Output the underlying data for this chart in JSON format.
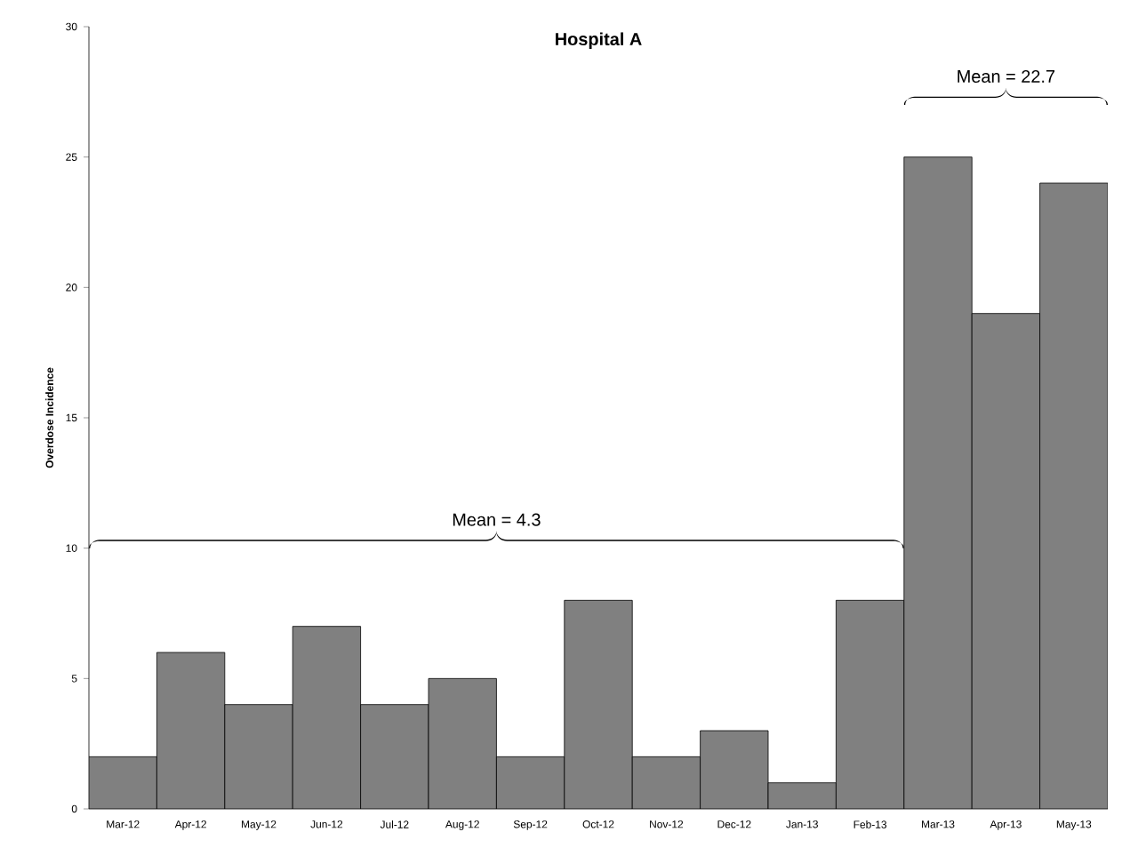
{
  "chart_data": {
    "type": "bar",
    "title": "Hospital A",
    "ylabel": "Overdose Incidence",
    "categories": [
      "Mar-12",
      "Apr-12",
      "May-12",
      "Jun-12",
      "Jul-12",
      "Aug-12",
      "Sep-12",
      "Oct-12",
      "Nov-12",
      "Dec-12",
      "Jan-13",
      "Feb-13",
      "Mar-13",
      "Apr-13",
      "May-13"
    ],
    "values": [
      2,
      6,
      4,
      7,
      4,
      5,
      2,
      8,
      2,
      3,
      1,
      8,
      25,
      19,
      24
    ],
    "color": "#808080",
    "ylim": [
      0,
      30
    ],
    "yticks": [
      0,
      5,
      10,
      15,
      20,
      25,
      30
    ],
    "annotations": [
      "Mean = 4.3",
      "Mean = 22.7"
    ],
    "grid": false
  }
}
